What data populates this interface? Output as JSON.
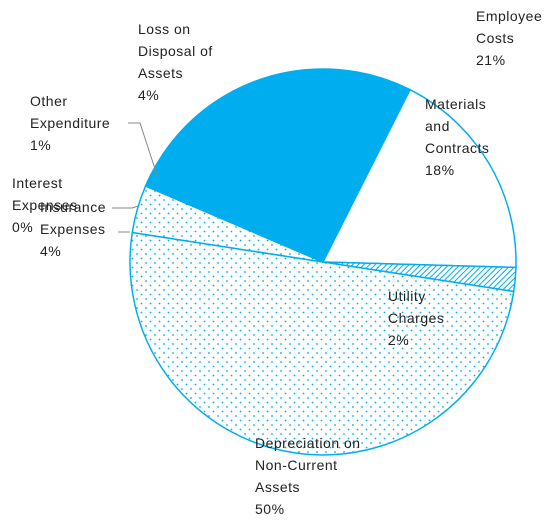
{
  "chart_data": {
    "type": "pie",
    "categories": [
      "Employee Costs",
      "Materials and Contracts",
      "Utility Charges",
      "Depreciation on Non-Current Assets",
      "Insurance Expenses",
      "Interest Expenses",
      "Other Expenditure",
      "Loss on Disposal of Assets"
    ],
    "values": [
      21,
      18,
      2,
      50,
      4,
      0,
      1,
      4
    ],
    "value_labels": [
      "21%",
      "18%",
      "2%",
      "50%",
      "4%",
      "0%",
      "1%",
      "4%"
    ],
    "colors": [
      "#00aeef",
      "#ffffff",
      "#00aeef",
      "#00aeef",
      "#00aeef",
      "#00aeef",
      "#00aeef",
      "#00aeef"
    ],
    "patterns": [
      "solid",
      "solid",
      "hatch",
      "dots",
      "dots",
      "dots",
      "solid",
      "solid"
    ]
  }
}
